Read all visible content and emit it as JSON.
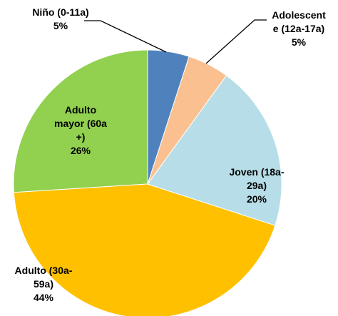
{
  "chart_data": {
    "type": "pie",
    "categories": [
      "Niño (0-11a)",
      "Adolescente (12a-17a)",
      "Joven (18a-29a)",
      "Adulto (30a-59a)",
      "Adulto mayor (60a +)"
    ],
    "values": [
      5,
      5,
      20,
      44,
      26
    ],
    "value_labels": [
      "5%",
      "5%",
      "20%",
      "44%",
      "26%"
    ],
    "colors": [
      "#4f81bd",
      "#fac090",
      "#b7dee8",
      "#ffc000",
      "#92d050"
    ]
  }
}
